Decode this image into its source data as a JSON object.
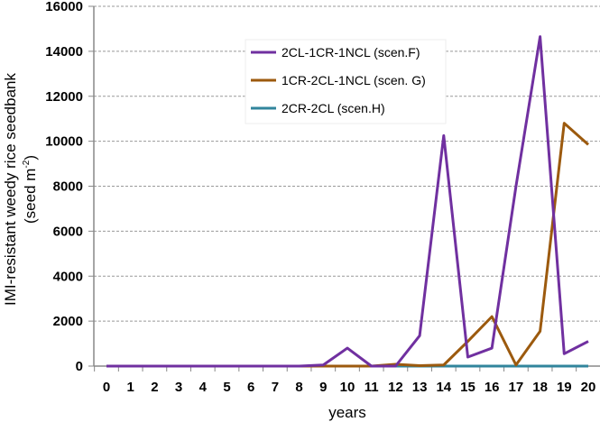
{
  "chart_data": {
    "type": "line",
    "title": "",
    "xlabel": "years",
    "ylabel": "IMI-resistant weedy rice seedbank",
    "ylabel_unit": "(seed m",
    "ylabel_unit_sup": "-2",
    "ylabel_unit_close": ")",
    "ylim": [
      0,
      16000
    ],
    "yticks": [
      "0",
      "2000",
      "4000",
      "6000",
      "8000",
      "10000",
      "12000",
      "14000",
      "16000"
    ],
    "x": [
      0,
      1,
      2,
      3,
      4,
      5,
      6,
      7,
      8,
      9,
      10,
      11,
      12,
      13,
      14,
      15,
      16,
      17,
      18,
      19,
      20
    ],
    "grid": "horizontal dashed",
    "legend": "top-center",
    "series": [
      {
        "name": "2CL-1CR-1NCL (scen.F)",
        "color": "#7030a0",
        "values": [
          0,
          0,
          0,
          0,
          0,
          0,
          0,
          0,
          0,
          50,
          800,
          0,
          0,
          1350,
          10250,
          400,
          800,
          8000,
          14650,
          550,
          1100
        ]
      },
      {
        "name": "1CR-2CL-1NCL (scen. G)",
        "color": "#9c5a0e",
        "values": [
          0,
          0,
          0,
          0,
          0,
          0,
          0,
          0,
          0,
          0,
          0,
          0,
          80,
          20,
          50,
          1100,
          2200,
          50,
          1550,
          10800,
          9850
        ]
      },
      {
        "name": "2CR-2CL (scen.H)",
        "color": "#31859c",
        "values": [
          0,
          0,
          0,
          0,
          0,
          0,
          0,
          0,
          0,
          0,
          0,
          0,
          0,
          0,
          0,
          0,
          0,
          0,
          0,
          0,
          0
        ]
      }
    ]
  }
}
